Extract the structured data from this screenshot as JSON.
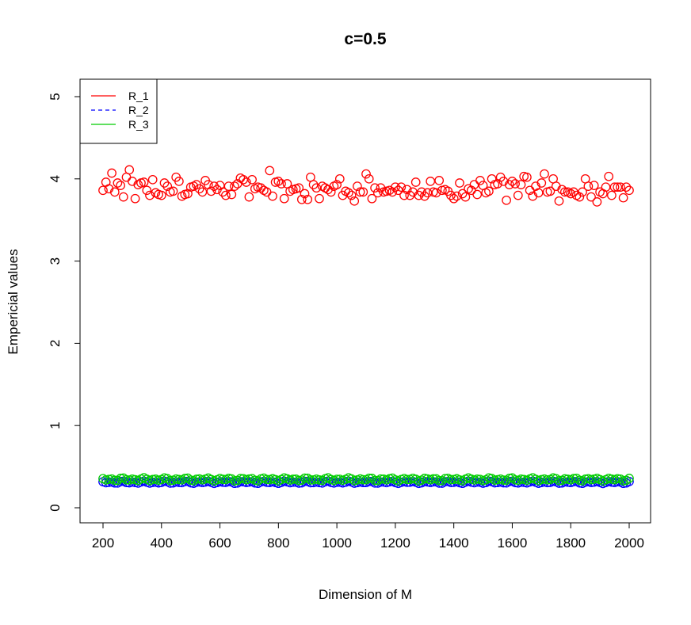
{
  "chart_data": {
    "type": "scatter",
    "title": "c=0.5",
    "xlabel": "Dimension of M",
    "ylabel": "Empericial values",
    "xlim": [
      200,
      2000
    ],
    "ylim": [
      0,
      5
    ],
    "xticks": [
      200,
      400,
      600,
      800,
      1000,
      1200,
      1400,
      1600,
      1800,
      2000
    ],
    "yticks": [
      0,
      1,
      2,
      3,
      4,
      5
    ],
    "x_start": 200,
    "x_step": 10,
    "x_end": 2000,
    "legend": {
      "position": "top-left",
      "entries": [
        {
          "label": "R_1",
          "color": "#ff0000",
          "line": "solid"
        },
        {
          "label": "R_2",
          "color": "#0000ff",
          "line": "dashed"
        },
        {
          "label": "R_3",
          "color": "#00cc00",
          "line": "solid"
        }
      ]
    },
    "series": [
      {
        "name": "R_1",
        "color": "#ff0000",
        "marker": "circle",
        "values": [
          3.86,
          3.96,
          3.88,
          4.07,
          3.84,
          3.95,
          3.92,
          3.78,
          4.02,
          4.11,
          3.97,
          3.76,
          3.93,
          3.95,
          3.96,
          3.86,
          3.8,
          3.99,
          3.83,
          3.81,
          3.8,
          3.95,
          3.91,
          3.84,
          3.85,
          4.02,
          3.97,
          3.79,
          3.81,
          3.82,
          3.9,
          3.91,
          3.93,
          3.88,
          3.84,
          3.98,
          3.93,
          3.85,
          3.91,
          3.87,
          3.92,
          3.84,
          3.8,
          3.91,
          3.81,
          3.91,
          3.94,
          4.01,
          3.99,
          3.96,
          3.78,
          3.99,
          3.88,
          3.9,
          3.89,
          3.86,
          3.84,
          4.1,
          3.79,
          3.96,
          3.97,
          3.94,
          3.76,
          3.94,
          3.85,
          3.87,
          3.88,
          3.89,
          3.75,
          3.82,
          3.75,
          4.02,
          3.93,
          3.89,
          3.76,
          3.91,
          3.89,
          3.87,
          3.84,
          3.91,
          3.93,
          4.0,
          3.8,
          3.85,
          3.83,
          3.8,
          3.73,
          3.91,
          3.84,
          3.84,
          4.06,
          4.0,
          3.76,
          3.89,
          3.83,
          3.89,
          3.84,
          3.85,
          3.86,
          3.84,
          3.9,
          3.86,
          3.9,
          3.8,
          3.87,
          3.8,
          3.84,
          3.96,
          3.8,
          3.84,
          3.79,
          3.83,
          3.97,
          3.84,
          3.83,
          3.98,
          3.86,
          3.87,
          3.85,
          3.8,
          3.76,
          3.79,
          3.95,
          3.82,
          3.78,
          3.88,
          3.86,
          3.93,
          3.81,
          3.98,
          3.92,
          3.83,
          3.85,
          4.0,
          3.93,
          3.94,
          4.02,
          3.97,
          3.74,
          3.93,
          3.97,
          3.94,
          3.8,
          3.93,
          4.03,
          4.02,
          3.86,
          3.79,
          3.91,
          3.83,
          3.95,
          4.06,
          3.84,
          3.85,
          4.0,
          3.91,
          3.73,
          3.87,
          3.84,
          3.84,
          3.82,
          3.84,
          3.8,
          3.78,
          3.84,
          4.0,
          3.91,
          3.78,
          3.92,
          3.72,
          3.84,
          3.82,
          3.9,
          4.03,
          3.8,
          3.9,
          3.9,
          3.9,
          3.77,
          3.9
        ]
      },
      {
        "name": "R_2",
        "color": "#0000ff",
        "marker": "circle",
        "base": 0.31,
        "jitter": 0.015
      },
      {
        "name": "R_3",
        "color": "#00cc00",
        "marker": "circle",
        "base": 0.345,
        "jitter": 0.02
      }
    ]
  }
}
